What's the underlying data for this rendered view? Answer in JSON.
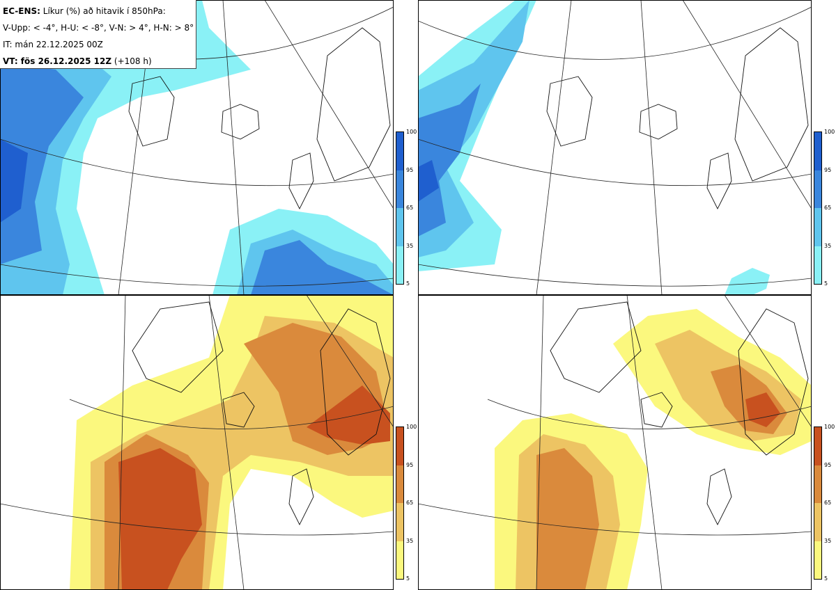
{
  "legend": {
    "title_bold": "EC-ENS:",
    "title_rest": " Líkur (%) að hitavik í 850hPa:",
    "thresholds": "V-Upp: < -4°, H-U: < -8°, V-N: > 4°, H-N: > 8°",
    "initial_time": "IT: mán 22.12.2025 00Z",
    "valid_bold": "VT: fös 26.12.2025 12Z",
    "valid_rest": " (+108 h)"
  },
  "panels": [
    {
      "id": "V-Upp",
      "variable": "cold anomaly < -4°",
      "palette": "blue"
    },
    {
      "id": "H-U",
      "variable": "cold anomaly < -8°",
      "palette": "blue"
    },
    {
      "id": "V-N",
      "variable": "warm anomaly > 4°",
      "palette": "warm"
    },
    {
      "id": "H-N",
      "variable": "warm anomaly > 8°",
      "palette": "warm"
    }
  ],
  "colorbar_cold": {
    "ticks": [
      "100",
      "95",
      "65",
      "35",
      "5"
    ],
    "colors": [
      "#1f5fcf",
      "#3a86dd",
      "#5fc5ee",
      "#8af1f6"
    ]
  },
  "colorbar_warm": {
    "ticks": [
      "100",
      "95",
      "65",
      "35",
      "5"
    ],
    "colors": [
      "#c8511f",
      "#da8a3c",
      "#edc463",
      "#fbf87e"
    ]
  }
}
